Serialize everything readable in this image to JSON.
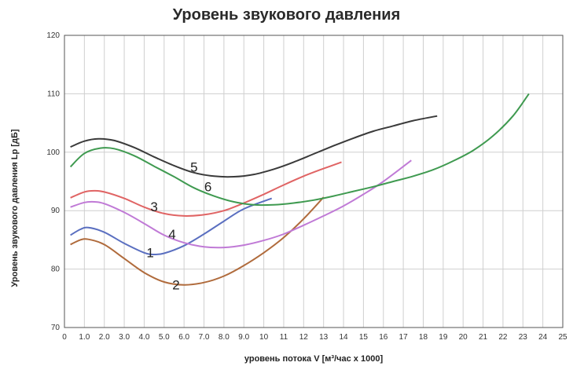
{
  "chart_data": {
    "type": "line",
    "title": "Уровень звукового давления",
    "xlabel": "уровень потока  V [м³/час x 1000]",
    "ylabel": "Уровень звукового давления  Lp [дБ]",
    "xlim": [
      0,
      25
    ],
    "ylim": [
      70,
      120
    ],
    "x_ticks": [
      0,
      1,
      2,
      3,
      4,
      5,
      6,
      7,
      8,
      9,
      10,
      11,
      12,
      13,
      14,
      15,
      16,
      17,
      18,
      19,
      20,
      21,
      22,
      23,
      24,
      25
    ],
    "x_tick_labels": [
      "0",
      "1.0",
      "2.0",
      "3.0",
      "4.0",
      "5.0",
      "6.0",
      "7.0",
      "8.0",
      "9.0",
      "10",
      "11",
      "12",
      "13",
      "14",
      "15",
      "16",
      "17",
      "18",
      "19",
      "20",
      "21",
      "22",
      "23",
      "24",
      "25"
    ],
    "y_ticks": [
      70,
      80,
      90,
      100,
      110,
      120
    ],
    "grid": true,
    "series": [
      {
        "name": "1",
        "color": "#5a6fc0",
        "x": [
          0.3,
          0.8,
          1.2,
          2.0,
          3.0,
          4.0,
          4.5,
          5.0,
          6.0,
          7.0,
          8.0,
          9.0,
          10.4
        ],
        "y": [
          85.8,
          86.8,
          87.1,
          86.3,
          84.4,
          82.8,
          82.5,
          82.7,
          84.0,
          86.0,
          88.2,
          90.3,
          92.1
        ]
      },
      {
        "name": "2",
        "color": "#b06b3c",
        "x": [
          0.3,
          0.8,
          1.2,
          2.0,
          3.0,
          4.0,
          5.0,
          6.0,
          7.0,
          8.0,
          9.0,
          10.0,
          11.0,
          12.0,
          13.0
        ],
        "y": [
          84.2,
          85.0,
          85.1,
          84.2,
          81.8,
          79.4,
          77.8,
          77.3,
          77.7,
          78.8,
          80.6,
          82.8,
          85.4,
          88.6,
          92.3
        ]
      },
      {
        "name": "3",
        "color": "#e06464",
        "x": [
          0.3,
          1.0,
          1.5,
          2.0,
          3.0,
          4.0,
          5.0,
          6.0,
          7.0,
          8.0,
          9.0,
          10.0,
          11.0,
          12.0,
          13.0,
          13.9
        ],
        "y": [
          92.2,
          93.2,
          93.4,
          93.2,
          92.1,
          90.6,
          89.5,
          89.1,
          89.3,
          90.0,
          91.3,
          92.8,
          94.4,
          95.9,
          97.2,
          98.3
        ]
      },
      {
        "name": "4",
        "color": "#c07ad6",
        "x": [
          0.3,
          1.0,
          1.5,
          2.0,
          3.0,
          4.0,
          5.0,
          6.0,
          7.0,
          8.0,
          9.0,
          10.0,
          11.0,
          12.0,
          13.0,
          14.0,
          15.0,
          16.0,
          17.4
        ],
        "y": [
          90.6,
          91.4,
          91.5,
          91.2,
          89.7,
          87.8,
          85.8,
          84.5,
          83.8,
          83.7,
          84.1,
          84.9,
          86.0,
          87.5,
          89.1,
          90.8,
          92.8,
          95.0,
          98.6
        ]
      },
      {
        "name": "5",
        "color": "#3a3a3a",
        "x": [
          0.3,
          1.0,
          1.7,
          2.5,
          3.5,
          4.5,
          5.5,
          6.5,
          7.5,
          8.5,
          9.5,
          10.5,
          11.5,
          12.5,
          13.5,
          14.5,
          15.5,
          16.5,
          17.5,
          18.7
        ],
        "y": [
          100.9,
          101.9,
          102.3,
          102.0,
          100.8,
          99.2,
          97.7,
          96.5,
          95.9,
          95.8,
          96.2,
          97.1,
          98.3,
          99.7,
          101.1,
          102.4,
          103.6,
          104.5,
          105.4,
          106.2
        ]
      },
      {
        "name": "6",
        "color": "#3f9a50",
        "x": [
          0.3,
          1.0,
          1.8,
          2.5,
          3.5,
          4.5,
          5.5,
          6.5,
          7.5,
          8.5,
          9.5,
          10.5,
          11.5,
          12.5,
          13.5,
          14.5,
          15.5,
          16.5,
          17.5,
          18.5,
          19.5,
          20.5,
          21.5,
          22.5,
          23.3
        ],
        "y": [
          97.5,
          99.8,
          100.7,
          100.6,
          99.4,
          97.6,
          95.8,
          93.9,
          92.5,
          91.5,
          91.0,
          91.0,
          91.3,
          91.8,
          92.5,
          93.3,
          94.1,
          95.0,
          95.9,
          97.0,
          98.5,
          100.3,
          102.8,
          106.2,
          110.0
        ]
      }
    ],
    "curve_labels": [
      {
        "text": "1",
        "x": 4.3,
        "y": 82.0
      },
      {
        "text": "2",
        "x": 5.6,
        "y": 76.5
      },
      {
        "text": "3",
        "x": 4.5,
        "y": 89.9
      },
      {
        "text": "4",
        "x": 5.4,
        "y": 85.2
      },
      {
        "text": "5",
        "x": 6.5,
        "y": 96.7
      },
      {
        "text": "6",
        "x": 7.2,
        "y": 93.3
      }
    ]
  }
}
